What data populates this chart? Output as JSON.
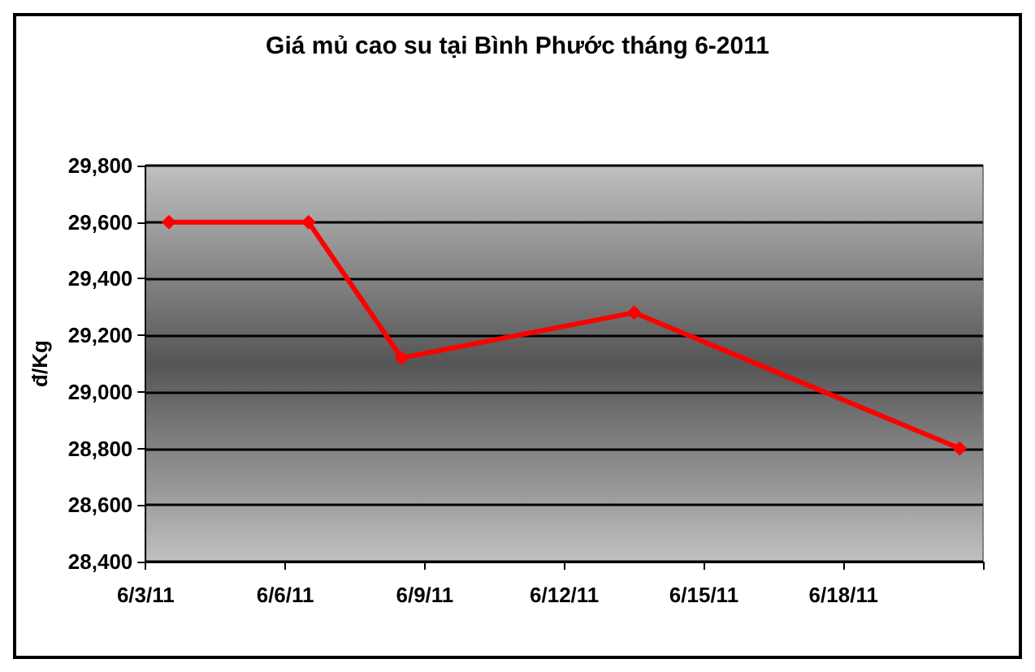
{
  "chart_data": {
    "type": "line",
    "title": "Giá mủ cao su tại Bình Phước tháng 6-2011",
    "ylabel": "đ/Kg",
    "x": [
      "2011-06-03",
      "2011-06-06",
      "2011-06-08",
      "2011-06-13",
      "2011-06-20"
    ],
    "series": [
      {
        "color": "#ff0000",
        "values": [
          29600,
          29600,
          29120,
          29280,
          28800
        ]
      }
    ],
    "xlim": [
      "2011-06-02T12:00",
      "2011-06-20T12:00"
    ],
    "xticks": [
      {
        "value": "2011-06-02T12:00",
        "label": "6/3/11"
      },
      {
        "value": "2011-06-05T12:00",
        "label": "6/6/11"
      },
      {
        "value": "2011-06-08T12:00",
        "label": "6/9/11"
      },
      {
        "value": "2011-06-11T12:00",
        "label": "6/12/11"
      },
      {
        "value": "2011-06-14T12:00",
        "label": "6/15/11"
      },
      {
        "value": "2011-06-17T12:00",
        "label": "6/18/11"
      },
      {
        "value": "2011-06-20T12:00",
        "label": null
      }
    ],
    "ylim": [
      28400,
      29800
    ],
    "yticks": [
      {
        "value": 28400,
        "label": "28,400"
      },
      {
        "value": 28600,
        "label": "28,600"
      },
      {
        "value": 28800,
        "label": "28,800"
      },
      {
        "value": 29000,
        "label": "29,000"
      },
      {
        "value": 29200,
        "label": "29,200"
      },
      {
        "value": 29400,
        "label": "29,400"
      },
      {
        "value": 29600,
        "label": "29,600"
      },
      {
        "value": 29800,
        "label": "29,800"
      }
    ],
    "grid": "y",
    "marker": "diamond",
    "line_style": "solid"
  }
}
